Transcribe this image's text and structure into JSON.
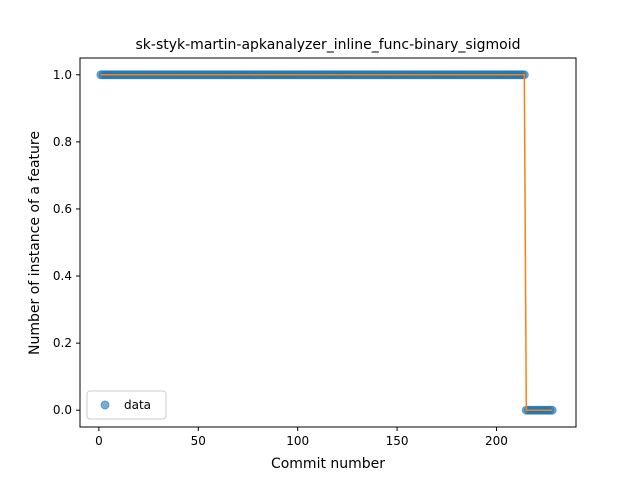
{
  "chart_data": {
    "type": "scatter",
    "title": "sk-styk-martin-apkanalyzer_inline_func-binary_sigmoid",
    "xlabel": "Commit number",
    "ylabel": "Number of instance of a feature",
    "xlim": [
      -9.5,
      240
    ],
    "ylim": [
      -0.05,
      1.05
    ],
    "xticks": [
      0,
      50,
      100,
      150,
      200
    ],
    "yticks": [
      0.0,
      0.2,
      0.4,
      0.6,
      0.8,
      1.0
    ],
    "xtick_labels": [
      "0",
      "50",
      "100",
      "150",
      "200"
    ],
    "ytick_labels": [
      "0.0",
      "0.2",
      "0.4",
      "0.6",
      "0.8",
      "1.0"
    ],
    "grid": false,
    "legend": {
      "position": "lower-left",
      "entries": [
        "data"
      ]
    },
    "series": [
      {
        "name": "data",
        "kind": "points",
        "color": "#1f77b4",
        "segments": [
          {
            "x_start": 1,
            "x_end": 214,
            "y": 1
          },
          {
            "x_start": 215,
            "x_end": 228,
            "y": 0
          }
        ]
      },
      {
        "kind": "line",
        "color": "#ff7f0e",
        "x": [
          1,
          214,
          215,
          228
        ],
        "y": [
          1,
          1,
          0,
          0
        ]
      }
    ]
  }
}
